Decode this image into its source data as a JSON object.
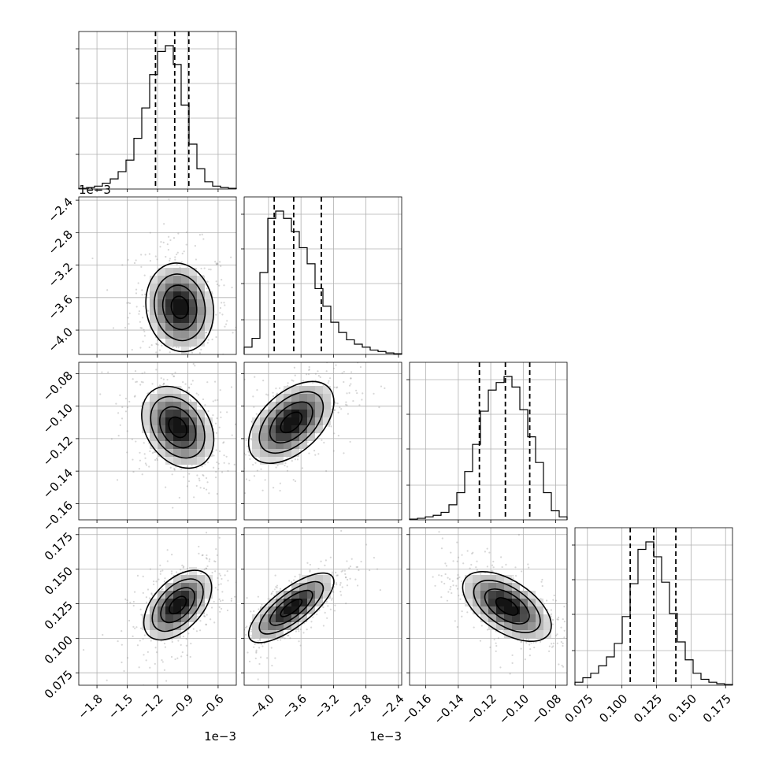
{
  "figure": {
    "x0_offset_text": "1e−3",
    "x1_offset_text": "1e−3",
    "y1_offset_text": "1e−3"
  },
  "chart_data": {
    "type": "corner",
    "parameters": [
      {
        "range": [
          -1.98,
          -0.42
        ],
        "ticks": [
          -1.8,
          -1.5,
          -1.2,
          -0.9,
          -0.6
        ],
        "tick_labels": [
          "−1.8",
          "−1.5",
          "−1.2",
          "−0.9",
          "−0.6"
        ],
        "offset_text": "1e−3",
        "quantiles": [
          -1.22,
          -1.03,
          -0.89
        ],
        "hist": [
          0.005,
          0.01,
          0.02,
          0.04,
          0.07,
          0.12,
          0.2,
          0.35,
          0.56,
          0.79,
          0.95,
          0.99,
          0.86,
          0.58,
          0.31,
          0.14,
          0.05,
          0.02,
          0.01,
          0.005
        ]
      },
      {
        "range": [
          -4.3,
          -2.36
        ],
        "ticks": [
          -4.0,
          -3.6,
          -3.2,
          -2.8,
          -2.4
        ],
        "tick_labels": [
          "−4.0",
          "−3.6",
          "−3.2",
          "−2.8",
          "−2.4"
        ],
        "offset_text": "1e−3",
        "quantiles": [
          -3.93,
          -3.69,
          -3.35
        ],
        "hist": [
          0.05,
          0.11,
          0.56,
          0.93,
          0.98,
          0.93,
          0.84,
          0.73,
          0.62,
          0.45,
          0.33,
          0.22,
          0.15,
          0.1,
          0.07,
          0.05,
          0.03,
          0.02,
          0.01,
          0.005
        ]
      },
      {
        "range": [
          -0.17,
          -0.073
        ],
        "ticks": [
          -0.16,
          -0.14,
          -0.12,
          -0.1,
          -0.08
        ],
        "tick_labels": [
          "−0.16",
          "−0.14",
          "−0.12",
          "−0.10",
          "−0.08"
        ],
        "quantiles": [
          -0.127,
          -0.111,
          -0.096
        ],
        "hist": [
          0.005,
          0.01,
          0.02,
          0.03,
          0.05,
          0.1,
          0.18,
          0.32,
          0.5,
          0.72,
          0.86,
          0.91,
          0.95,
          0.88,
          0.73,
          0.55,
          0.38,
          0.18,
          0.06,
          0.02
        ]
      },
      {
        "range": [
          0.066,
          0.18
        ],
        "ticks": [
          0.075,
          0.1,
          0.125,
          0.15,
          0.175
        ],
        "tick_labels": [
          "0.075",
          "0.100",
          "0.125",
          "0.150",
          "0.175"
        ],
        "quantiles": [
          0.106,
          0.123,
          0.139
        ],
        "hist": [
          0.02,
          0.05,
          0.08,
          0.13,
          0.19,
          0.28,
          0.46,
          0.68,
          0.91,
          0.96,
          0.86,
          0.69,
          0.48,
          0.29,
          0.17,
          0.08,
          0.04,
          0.02,
          0.01,
          0.005
        ]
      }
    ],
    "pairs": [
      {
        "x": 0,
        "y": 1,
        "center": [
          -0.98,
          -3.72
        ],
        "sigma": [
          0.16,
          0.26
        ],
        "rho": -0.1
      },
      {
        "x": 0,
        "y": 2,
        "center": [
          -1.0,
          -0.113
        ],
        "sigma": [
          0.17,
          0.012
        ],
        "rho": -0.3
      },
      {
        "x": 0,
        "y": 3,
        "center": [
          -1.0,
          0.124
        ],
        "sigma": [
          0.16,
          0.012
        ],
        "rho": 0.5
      },
      {
        "x": 1,
        "y": 2,
        "center": [
          -3.72,
          -0.11
        ],
        "sigma": [
          0.25,
          0.012
        ],
        "rho": 0.5
      },
      {
        "x": 1,
        "y": 3,
        "center": [
          -3.72,
          0.122
        ],
        "sigma": [
          0.25,
          0.012
        ],
        "rho": 0.75
      },
      {
        "x": 2,
        "y": 3,
        "center": [
          -0.11,
          0.123
        ],
        "sigma": [
          0.013,
          0.012
        ],
        "rho": -0.55
      }
    ],
    "grid": true
  }
}
